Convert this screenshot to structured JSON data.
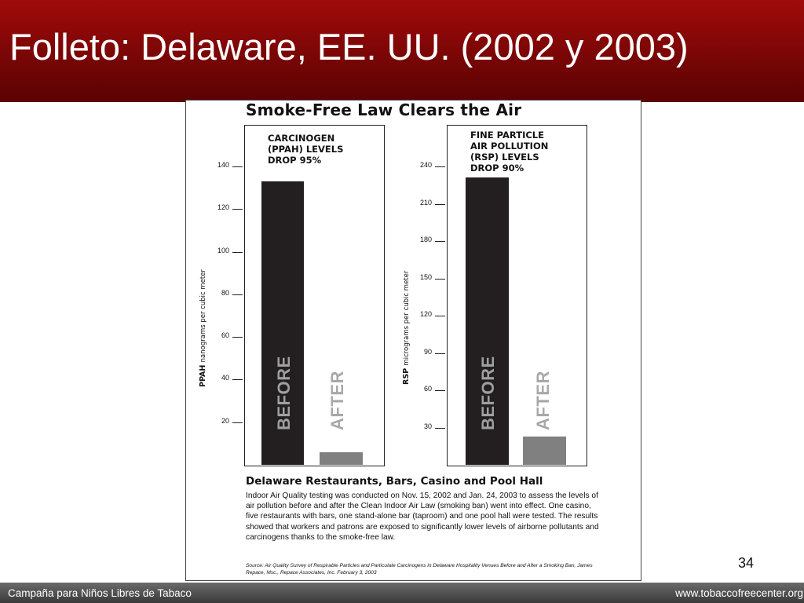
{
  "slide": {
    "title": "Folleto: Delaware, EE. UU. (2002 y 2003)",
    "page_number": "34",
    "footer_left": "Campaña para Niños Libres de Tabaco",
    "footer_right": "www.tobaccofreecenter.org"
  },
  "colors": {
    "title_bar": "#7a0606",
    "before_bar": "#231f20",
    "after_bar": "#808080"
  },
  "figure": {
    "heading": "Smoke-Free Law Clears the Air",
    "description_heading": "Delaware Restaurants, Bars, Casino and Pool Hall",
    "description": "Indoor Air Quality testing was conducted on Nov. 15, 2002 and Jan. 24, 2003 to assess the levels of air pollution before and after the Clean Indoor Air Law (smoking ban) went into effect. One casino, five restaurants with bars, one stand-alone bar (taproom) and one pool hall were tested. The results showed that workers and patrons are exposed to significantly lower levels of airborne pollutants and carcinogens thanks to the smoke-free law.",
    "source": "Source: Air Quality Survey of Respirable Particles and Particulate Carcinogens in Delaware Hospitality Venues Before and After a Smoking Ban, James Repace, Msc., Repace Associates, Inc. February 3, 2003"
  },
  "chart_data": [
    {
      "type": "bar",
      "title_lines": [
        "CARCINOGEN",
        "(PPAH) LEVELS",
        "DROP 95%"
      ],
      "ylabel": "PPAH",
      "ylabel_unit": "nanograms per cubic meter",
      "categories": [
        "BEFORE",
        "AFTER"
      ],
      "values": [
        133,
        6
      ],
      "yticks": [
        "20",
        "40",
        "60",
        "80",
        "100",
        "120",
        "140"
      ],
      "ylim": [
        0,
        140
      ]
    },
    {
      "type": "bar",
      "title_lines": [
        "FINE PARTICLE",
        "AIR POLLUTION",
        "(RSP) LEVELS",
        "DROP 90%"
      ],
      "ylabel": "RSP",
      "ylabel_unit": "micrograms per cubic meter",
      "categories": [
        "BEFORE",
        "AFTER"
      ],
      "values": [
        231,
        23
      ],
      "yticks": [
        "30",
        "60",
        "90",
        "120",
        "150",
        "180",
        "210",
        "240"
      ],
      "ylim": [
        0,
        240
      ]
    }
  ]
}
